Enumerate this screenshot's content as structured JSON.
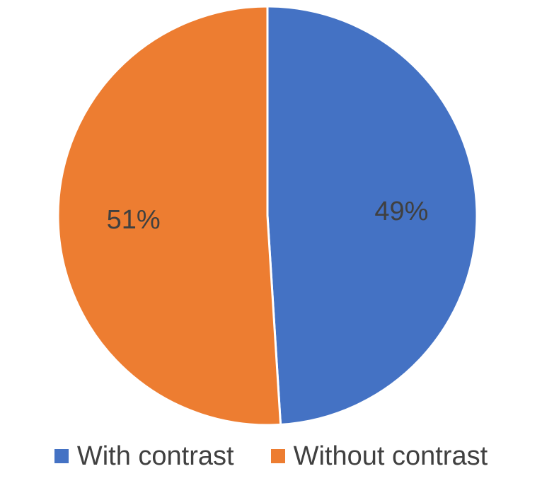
{
  "chart_data": {
    "type": "pie",
    "title": "",
    "legend_position": "bottom",
    "slices": [
      {
        "name": "With contrast",
        "value": 49,
        "label": "49%",
        "color": "#4472C4"
      },
      {
        "name": "Without contrast",
        "value": 51,
        "label": "51%",
        "color": "#ED7D31"
      }
    ]
  }
}
